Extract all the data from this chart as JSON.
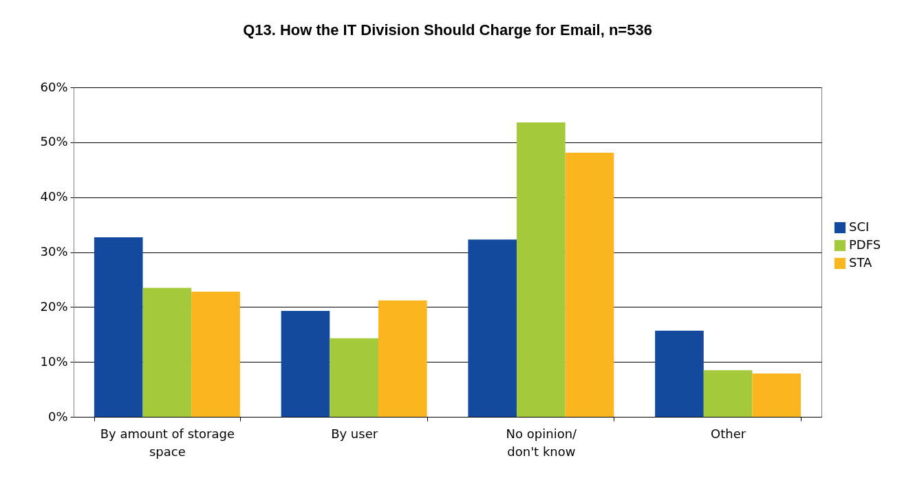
{
  "chart_data": {
    "type": "bar",
    "title": "Q13. How the IT Division Should Charge for Email, n=536",
    "categories": [
      "By amount of storage\nspace",
      "By user",
      "No opinion/\ndon't know",
      "Other"
    ],
    "series": [
      {
        "name": "SCI",
        "color": "#134a9e",
        "values": [
          32.7,
          19.3,
          32.3,
          15.7
        ]
      },
      {
        "name": "PDFS",
        "color": "#a4c93a",
        "values": [
          23.5,
          14.3,
          53.6,
          8.5
        ]
      },
      {
        "name": "STA",
        "color": "#fbb51f",
        "values": [
          22.8,
          21.2,
          48.1,
          7.9
        ]
      }
    ],
    "ylim": [
      0,
      60
    ],
    "yticks": [
      {
        "value": 0,
        "label": "0%"
      },
      {
        "value": 10,
        "label": "10%"
      },
      {
        "value": 20,
        "label": "20%"
      },
      {
        "value": 30,
        "label": "30%"
      },
      {
        "value": 40,
        "label": "40%"
      },
      {
        "value": 50,
        "label": "50%"
      },
      {
        "value": 60,
        "label": "60%"
      }
    ],
    "grid": "y",
    "legend": "right"
  }
}
